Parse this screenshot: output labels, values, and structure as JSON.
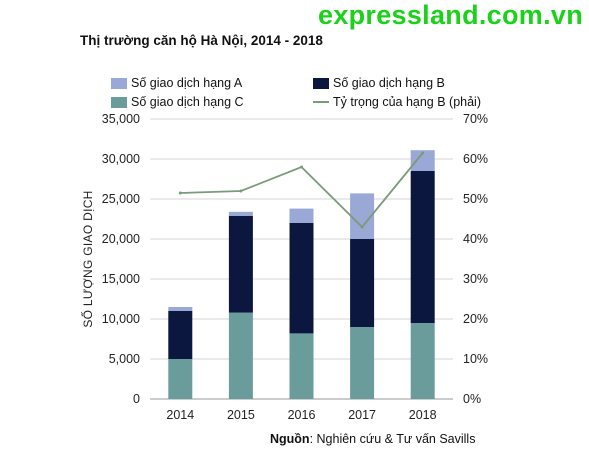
{
  "watermark": "expressland.com.vn",
  "source": {
    "label": "Nguồn",
    "text": ": Nghiên cứu & Tư vấn Savills"
  },
  "chart_data": {
    "type": "bar",
    "stacked": true,
    "title": "Thị trường căn hộ Hà Nội, 2014 - 2018",
    "xlabel": "",
    "ylabel": "SỐ LƯỢNG GIAO DỊCH",
    "categories": [
      "2014",
      "2015",
      "2016",
      "2017",
      "2018"
    ],
    "ylim": [
      0,
      35000
    ],
    "yticks": [
      0,
      5000,
      10000,
      15000,
      20000,
      25000,
      30000,
      35000
    ],
    "ytick_labels": [
      "0",
      "5,000",
      "10,000",
      "15,000",
      "20,000",
      "25,000",
      "30,000",
      "35,000"
    ],
    "y2lim": [
      0,
      70
    ],
    "y2ticks": [
      0,
      10,
      20,
      30,
      40,
      50,
      60,
      70
    ],
    "y2tick_labels": [
      "0%",
      "10%",
      "20%",
      "30%",
      "40%",
      "50%",
      "60%",
      "70%"
    ],
    "series": [
      {
        "name": "Số giao dịch hạng C",
        "color": "#6b9c9c",
        "values": [
          5000,
          10800,
          8200,
          9000,
          9500
        ]
      },
      {
        "name": "Số giao dịch hạng B",
        "color": "#0c1740",
        "values": [
          6000,
          12100,
          13800,
          11000,
          19000
        ]
      },
      {
        "name": "Số giao dịch hạng A",
        "color": "#9aa8d6",
        "values": [
          500,
          500,
          1800,
          5700,
          2600
        ]
      }
    ],
    "line_series": {
      "name": "Tỷ trọng của hạng B (phải)",
      "color": "#7a9a7a",
      "axis": "right",
      "values": [
        51.5,
        52,
        58,
        43,
        61.5
      ]
    },
    "legend": {
      "position": "top",
      "items": [
        "Số giao dịch hạng A",
        "Số giao dịch hạng B",
        "Số giao dịch hạng C",
        "Tỷ trọng của hạng B (phải)"
      ]
    },
    "grid": true
  }
}
